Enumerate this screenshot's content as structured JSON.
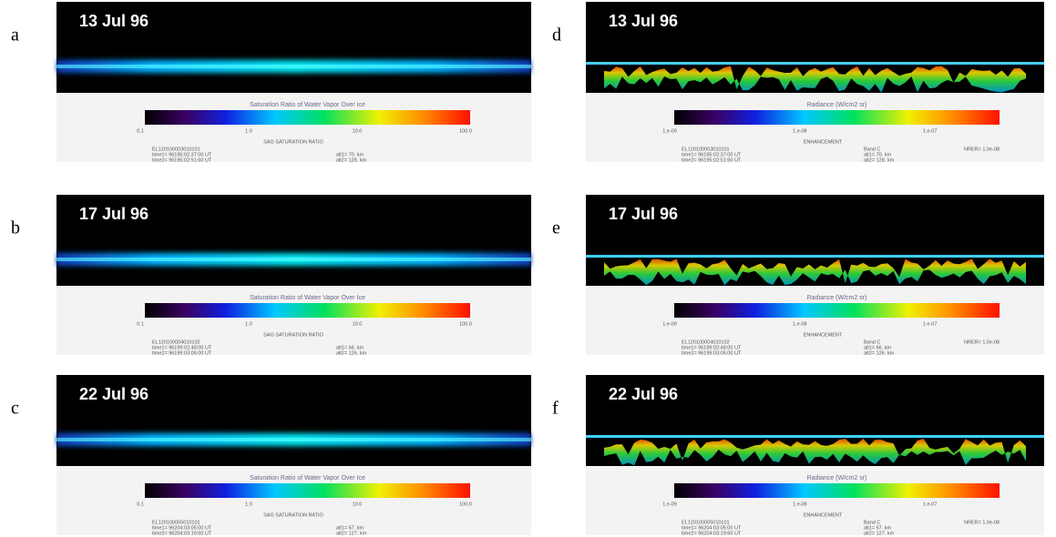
{
  "panels": [
    {
      "letter": "a",
      "date": "13 Jul 96",
      "colorbar_title": "Saturation Ratio of Water Vapor Over Ice",
      "colorbar_ticks": [
        "0.1",
        "1.0",
        "10.0",
        "100.0"
      ],
      "colorbar_label": "SAG SATURATION RATIO",
      "id": "EL120100003010101",
      "time1": "time1= 96195:02:37:00 UT",
      "time2": "time2= 96195:02:51:60 UT",
      "alt1": "alt1= 70. km",
      "alt2": "alt2= 128. km"
    },
    {
      "letter": "b",
      "date": "17 Jul 96",
      "colorbar_title": "Saturation Ratio of Water Vapor Over Ice",
      "colorbar_ticks": [
        "0.1",
        "1.0",
        "10.0",
        "100.0"
      ],
      "colorbar_label": "SAG SATURATION RATIO",
      "id": "EL120100004010102",
      "time1": "time1= 96199:02:48:00 UT",
      "time2": "time2= 96199:03:05:00 UT",
      "alt1": "alt1= 66. km",
      "alt2": "alt2= 126. km"
    },
    {
      "letter": "c",
      "date": "22 Jul 96",
      "colorbar_title": "Saturation Ratio of Water Vapor Over Ice",
      "colorbar_ticks": [
        "0.1",
        "1.0",
        "10.0",
        "100.0"
      ],
      "colorbar_label": "SAG SATURATION RATIO",
      "id": "EL120100005010101",
      "time1": "time1= 96204:03:05:00 UT",
      "time2": "time2= 96204:03:19:60 UT",
      "alt1": "alt1= 67. km",
      "alt2": "alt2= 127. km"
    },
    {
      "letter": "d",
      "date": "13 Jul 96",
      "colorbar_title": "Radiance (W/cm2 sr)",
      "colorbar_ticks": [
        "1.e-09",
        "1.e-08",
        "1.e-07"
      ],
      "colorbar_label": "ENHANCEMENT",
      "id": "EL120100003010101",
      "time1": "time1= 96195:02:37:00 UT",
      "time2": "time2= 96195:02:51:60 UT",
      "band": "Band C",
      "alt1": "alt1= 70. km",
      "alt2": "alt2= 128. km",
      "nrer": "NRER= 1.0e-08"
    },
    {
      "letter": "e",
      "date": "17 Jul 96",
      "colorbar_title": "Radiance (W/cm2 sr)",
      "colorbar_ticks": [
        "1.e-09",
        "1.e-08",
        "1.e-07"
      ],
      "colorbar_label": "ENHANCEMENT",
      "id": "EL120100004010102",
      "time1": "time1= 96199:02:48:00 UT",
      "time2": "time2= 96199:03:05:00 UT",
      "band": "Band C",
      "alt1": "alt1= 66. km",
      "alt2": "alt2= 126. km",
      "nrer": "NRER= 1.0e-08"
    },
    {
      "letter": "f",
      "date": "22 Jul 96",
      "colorbar_title": "Radiance (W/cm2 sr)",
      "colorbar_ticks": [
        "1.e-09",
        "1.e-08",
        "1.e-07"
      ],
      "colorbar_label": "ENHANCEMENT",
      "id": "EL120100005010101",
      "time1": "time1= 96204:03:05:00 UT",
      "time2": "time2= 96204:03:19:60 UT",
      "band": "Band C",
      "alt1": "alt1= 67. km",
      "alt2": "alt2= 127. km",
      "nrer": "NRER= 1.0e-08"
    }
  ]
}
